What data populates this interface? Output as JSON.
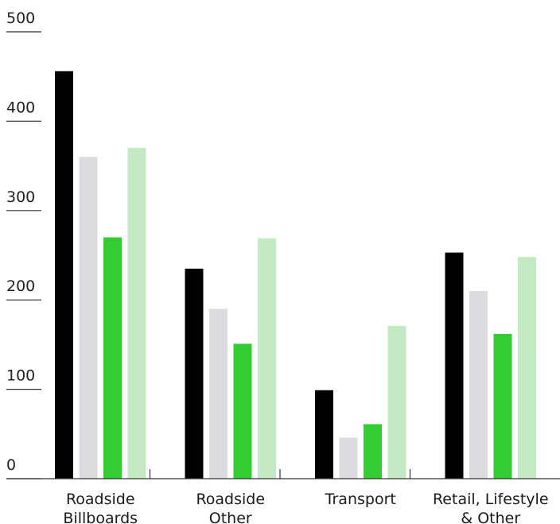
{
  "chart_data": {
    "type": "bar",
    "title": "",
    "xlabel": "",
    "ylabel": "",
    "ylim": [
      0,
      500
    ],
    "yticks": [
      0,
      100,
      200,
      300,
      400,
      500
    ],
    "grid": false,
    "legend": "none",
    "categories": [
      [
        "Roadside",
        "Billboards"
      ],
      [
        "Roadside",
        "Other"
      ],
      [
        "Transport"
      ],
      [
        "Retail, Lifestyle",
        "& Other"
      ]
    ],
    "series": [
      {
        "color": "#000000",
        "values": [
          456,
          235,
          99,
          253
        ]
      },
      {
        "color": "#dcdcde",
        "values": [
          360,
          190,
          46,
          210
        ]
      },
      {
        "color": "#33cc33",
        "values": [
          270,
          151,
          61,
          162
        ]
      },
      {
        "color": "#c4eac4",
        "values": [
          370,
          269,
          171,
          248
        ]
      }
    ]
  }
}
